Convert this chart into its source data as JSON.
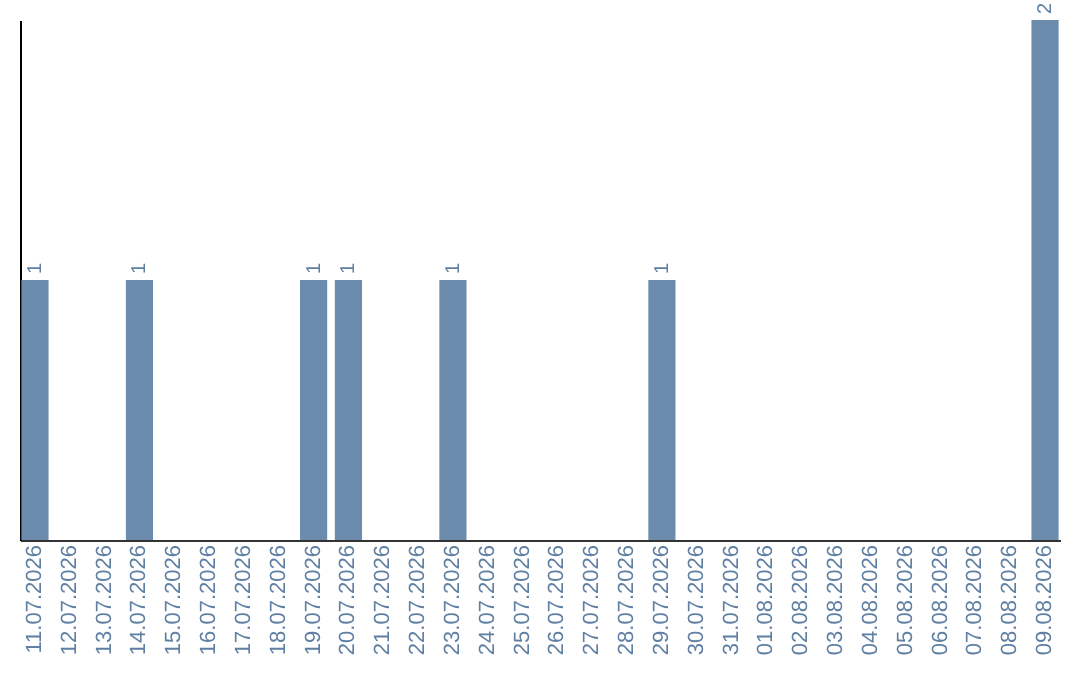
{
  "chart_data": {
    "type": "bar",
    "categories": [
      "11.07.2026",
      "12.07.2026",
      "13.07.2026",
      "14.07.2026",
      "15.07.2026",
      "16.07.2026",
      "17.07.2026",
      "18.07.2026",
      "19.07.2026",
      "20.07.2026",
      "21.07.2026",
      "22.07.2026",
      "23.07.2026",
      "24.07.2026",
      "25.07.2026",
      "26.07.2026",
      "27.07.2026",
      "28.07.2026",
      "29.07.2026",
      "30.07.2026",
      "31.07.2026",
      "01.08.2026",
      "02.08.2026",
      "03.08.2026",
      "04.08.2026",
      "05.08.2026",
      "06.08.2026",
      "07.08.2026",
      "08.08.2026",
      "09.08.2026"
    ],
    "values": [
      1,
      0,
      0,
      1,
      0,
      0,
      0,
      0,
      1,
      1,
      0,
      0,
      1,
      0,
      0,
      0,
      0,
      0,
      1,
      0,
      0,
      0,
      0,
      0,
      0,
      0,
      0,
      0,
      0,
      2
    ],
    "value_labels": [
      "1",
      null,
      null,
      "1",
      null,
      null,
      null,
      null,
      "1",
      "1",
      null,
      null,
      "1",
      null,
      null,
      null,
      null,
      null,
      "1",
      null,
      null,
      null,
      null,
      null,
      null,
      null,
      null,
      null,
      null,
      "2"
    ],
    "color": "#6b8cac",
    "tick_labels": "x",
    "grid": false
  }
}
